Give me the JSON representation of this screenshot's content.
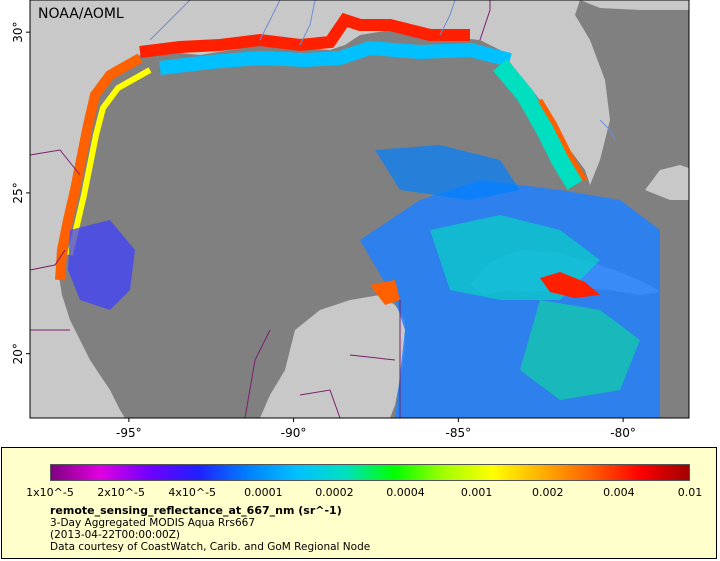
{
  "map": {
    "logo_text": "NOAA/AOML",
    "lat_ticks": [
      {
        "value": 30,
        "label": "30°"
      },
      {
        "value": 25,
        "label": "25°"
      },
      {
        "value": 20,
        "label": "20°"
      }
    ],
    "lon_ticks": [
      {
        "value": -95,
        "label": "-95°"
      },
      {
        "value": -90,
        "label": "-90°"
      },
      {
        "value": -85,
        "label": "-85°"
      },
      {
        "value": -80,
        "label": "-80°"
      }
    ],
    "extent": {
      "lon_min": -98,
      "lon_max": -78,
      "lat_min": 18,
      "lat_max": 31
    },
    "colors": {
      "land": "#c8c8c8",
      "no_data": "#808080",
      "border": "#7a1f6e",
      "river": "#6b8fd6"
    }
  },
  "colorbar": {
    "stops": [
      "#800080",
      "#e000e0",
      "#7000ff",
      "#2020ff",
      "#0080ff",
      "#00c0ff",
      "#00e0c0",
      "#00ff00",
      "#a0ff00",
      "#ffff00",
      "#ffb000",
      "#ff6000",
      "#ff0000",
      "#a00000"
    ],
    "labels": [
      "1x10^-5",
      "2x10^-5",
      "4x10^-5",
      "0.0001",
      "0.0002",
      "0.0004",
      "0.001",
      "0.002",
      "0.004",
      "0.01"
    ]
  },
  "info": {
    "variable": "remote_sensing_reflectance_at_667_nm (sr^-1)",
    "line1": "3-Day Aggregated MODIS Aqua Rrs667",
    "line2": "(2013-04-22T00:00:00Z)",
    "line3": "Data courtesy of CoastWatch, Carib. and GoM Regional Node"
  }
}
